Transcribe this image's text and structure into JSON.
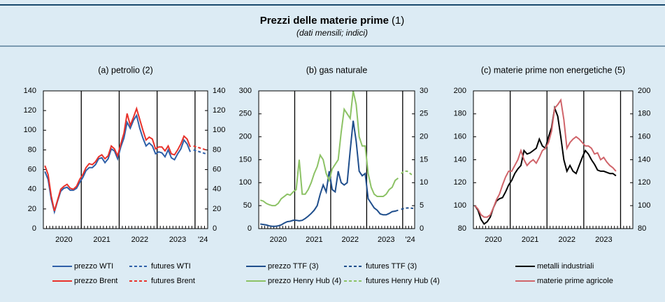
{
  "figure": {
    "title": "Prezzi delle materie prime",
    "title_note": "(1)",
    "subtitle": "(dati mensili; indici)"
  },
  "chart_data": [
    {
      "type": "line",
      "title": "(a) petrolio (2)",
      "categories": [
        null,
        null,
        null,
        null,
        null,
        null,
        "2020",
        null,
        null,
        null,
        null,
        null,
        null,
        null,
        null,
        null,
        null,
        null,
        "2021",
        null,
        null,
        null,
        null,
        null,
        null,
        null,
        null,
        null,
        null,
        null,
        "2022",
        null,
        null,
        null,
        null,
        null,
        null,
        null,
        null,
        null,
        null,
        null,
        "2023",
        null,
        null,
        null,
        null,
        null,
        null,
        null,
        "'24",
        null
      ],
      "ylim": [
        0,
        140
      ],
      "yticks": [
        0,
        20,
        40,
        60,
        80,
        100,
        120,
        140
      ],
      "y2lim": [
        0,
        140
      ],
      "y2ticks": [
        0,
        20,
        40,
        60,
        80,
        100,
        120,
        140
      ],
      "legend_columns": 2,
      "series": [
        {
          "name": "prezzo WTI",
          "color": "#2e5fa8",
          "dashed": false,
          "values": [
            58,
            50,
            30,
            17,
            28,
            38,
            41,
            42,
            39,
            39,
            41,
            47,
            52,
            59,
            62,
            62,
            65,
            71,
            72,
            67,
            71,
            81,
            79,
            71,
            83,
            92,
            108,
            102,
            110,
            115,
            102,
            92,
            84,
            87,
            84,
            76,
            78,
            77,
            73,
            80,
            72,
            70,
            76,
            81,
            90,
            86,
            78,
            null,
            null,
            null,
            null,
            null
          ]
        },
        {
          "name": "futures WTI",
          "color": "#2e5fa8",
          "dashed": true,
          "values": [
            null,
            null,
            null,
            null,
            null,
            null,
            null,
            null,
            null,
            null,
            null,
            null,
            null,
            null,
            null,
            null,
            null,
            null,
            null,
            null,
            null,
            null,
            null,
            null,
            null,
            null,
            null,
            null,
            null,
            null,
            null,
            null,
            null,
            null,
            null,
            null,
            null,
            null,
            null,
            null,
            null,
            null,
            null,
            null,
            null,
            null,
            null,
            80,
            79,
            78,
            77,
            76
          ]
        },
        {
          "name": "prezzo Brent",
          "color": "#e8312a",
          "dashed": false,
          "values": [
            64,
            55,
            33,
            18,
            29,
            40,
            43,
            45,
            41,
            40,
            43,
            50,
            55,
            62,
            66,
            65,
            68,
            73,
            75,
            71,
            74,
            84,
            81,
            74,
            86,
            97,
            117,
            105,
            113,
            122,
            111,
            100,
            90,
            93,
            91,
            81,
            83,
            83,
            79,
            84,
            76,
            75,
            80,
            86,
            94,
            91,
            83,
            null,
            null,
            null,
            null,
            null
          ]
        },
        {
          "name": "futures Brent",
          "color": "#e8312a",
          "dashed": true,
          "values": [
            null,
            null,
            null,
            null,
            null,
            null,
            null,
            null,
            null,
            null,
            null,
            null,
            null,
            null,
            null,
            null,
            null,
            null,
            null,
            null,
            null,
            null,
            null,
            null,
            null,
            null,
            null,
            null,
            null,
            null,
            null,
            null,
            null,
            null,
            null,
            null,
            null,
            null,
            null,
            null,
            null,
            null,
            null,
            null,
            null,
            null,
            null,
            84,
            83,
            82,
            81,
            80
          ]
        }
      ]
    },
    {
      "type": "line",
      "title": "(b) gas naturale",
      "categories": [
        null,
        null,
        null,
        null,
        null,
        null,
        "2020",
        null,
        null,
        null,
        null,
        null,
        null,
        null,
        null,
        null,
        null,
        null,
        "2021",
        null,
        null,
        null,
        null,
        null,
        null,
        null,
        null,
        null,
        null,
        null,
        "2022",
        null,
        null,
        null,
        null,
        null,
        null,
        null,
        null,
        null,
        null,
        null,
        "2023",
        null,
        null,
        null,
        null,
        null,
        null,
        null,
        "'24",
        null
      ],
      "ylim": [
        0,
        300
      ],
      "yticks": [
        0,
        50,
        100,
        150,
        200,
        250,
        300
      ],
      "y2lim": [
        0,
        30
      ],
      "y2ticks": [
        0,
        5,
        10,
        15,
        20,
        25,
        30
      ],
      "legend_columns": 2,
      "series": [
        {
          "name": "prezzo TTF (3)",
          "color": "#1f4e8c",
          "dashed": false,
          "values": [
            10,
            9,
            8,
            6,
            5,
            5,
            6,
            8,
            12,
            15,
            16,
            18,
            18,
            17,
            18,
            22,
            27,
            33,
            40,
            50,
            75,
            95,
            80,
            125,
            85,
            80,
            125,
            100,
            95,
            100,
            170,
            235,
            190,
            125,
            115,
            120,
            65,
            55,
            45,
            40,
            32,
            30,
            30,
            33,
            37,
            38,
            40,
            null,
            null,
            null,
            null,
            null
          ]
        },
        {
          "name": "futures TTF (3)",
          "color": "#1f4e8c",
          "dashed": true,
          "values": [
            null,
            null,
            null,
            null,
            null,
            null,
            null,
            null,
            null,
            null,
            null,
            null,
            null,
            null,
            null,
            null,
            null,
            null,
            null,
            null,
            null,
            null,
            null,
            null,
            null,
            null,
            null,
            null,
            null,
            null,
            null,
            null,
            null,
            null,
            null,
            null,
            null,
            null,
            null,
            null,
            null,
            null,
            null,
            null,
            null,
            null,
            null,
            42,
            44,
            45,
            45,
            44
          ]
        },
        {
          "name": "prezzo Henry Hub (4)",
          "color": "#8cc265",
          "dashed": false,
          "axis": "y2",
          "values": [
            6.2,
            6,
            5.5,
            5.2,
            5,
            5,
            5.5,
            6.5,
            7,
            7.5,
            7.3,
            8,
            8.5,
            15,
            7.5,
            7.5,
            8.5,
            10,
            12,
            13.5,
            16,
            15,
            12,
            10.5,
            13,
            14,
            15,
            21,
            26,
            25,
            24,
            30,
            27,
            20,
            18,
            18,
            12,
            9,
            7.5,
            7,
            7,
            7,
            7.5,
            8.5,
            9,
            10.5,
            11,
            null,
            null,
            null,
            null,
            null
          ]
        },
        {
          "name": "futures Henry Hub (4)",
          "color": "#8cc265",
          "dashed": true,
          "axis": "y2",
          "values": [
            null,
            null,
            null,
            null,
            null,
            null,
            null,
            null,
            null,
            null,
            null,
            null,
            null,
            null,
            null,
            null,
            null,
            null,
            null,
            null,
            null,
            null,
            null,
            null,
            null,
            null,
            null,
            null,
            null,
            null,
            null,
            null,
            null,
            null,
            null,
            null,
            null,
            null,
            null,
            null,
            null,
            null,
            null,
            null,
            null,
            null,
            null,
            12,
            12.5,
            12.5,
            12,
            11.5
          ]
        }
      ]
    },
    {
      "type": "line",
      "title": "(c) materie prime non energetiche (5)",
      "categories": [
        null,
        null,
        null,
        null,
        null,
        null,
        "2020",
        null,
        null,
        null,
        null,
        null,
        null,
        null,
        null,
        null,
        null,
        null,
        "2021",
        null,
        null,
        null,
        null,
        null,
        null,
        null,
        null,
        null,
        null,
        null,
        "2022",
        null,
        null,
        null,
        null,
        null,
        null,
        null,
        null,
        null,
        null,
        null,
        "2023",
        null,
        null,
        null,
        null,
        null,
        null,
        null,
        null,
        null
      ],
      "ylim": [
        80,
        200
      ],
      "yticks": [
        80,
        100,
        120,
        140,
        160,
        180,
        200
      ],
      "y2lim": [
        80,
        200
      ],
      "y2ticks": [
        80,
        100,
        120,
        140,
        160,
        180,
        200
      ],
      "legend_columns": 1,
      "series": [
        {
          "name": "metalli industriali",
          "color": "#000000",
          "dashed": false,
          "values": [
            100,
            96,
            88,
            84,
            86,
            90,
            98,
            104,
            106,
            107,
            112,
            118,
            122,
            128,
            132,
            135,
            148,
            145,
            146,
            148,
            150,
            158,
            152,
            150,
            160,
            168,
            185,
            178,
            160,
            140,
            130,
            135,
            130,
            128,
            135,
            142,
            148,
            145,
            140,
            136,
            131,
            130,
            130,
            129,
            128,
            128,
            126,
            null,
            null,
            null,
            null,
            null
          ]
        },
        {
          "name": "materie prime agricole",
          "color": "#d0646a",
          "dashed": false,
          "values": [
            100,
            97,
            92,
            90,
            90,
            92,
            98,
            105,
            110,
            118,
            125,
            130,
            130,
            135,
            140,
            148,
            140,
            135,
            138,
            140,
            137,
            142,
            148,
            150,
            155,
            165,
            185,
            188,
            192,
            175,
            150,
            155,
            158,
            160,
            158,
            155,
            152,
            152,
            150,
            145,
            146,
            140,
            142,
            138,
            135,
            133,
            130,
            null,
            null,
            null,
            null,
            null
          ]
        }
      ]
    }
  ]
}
